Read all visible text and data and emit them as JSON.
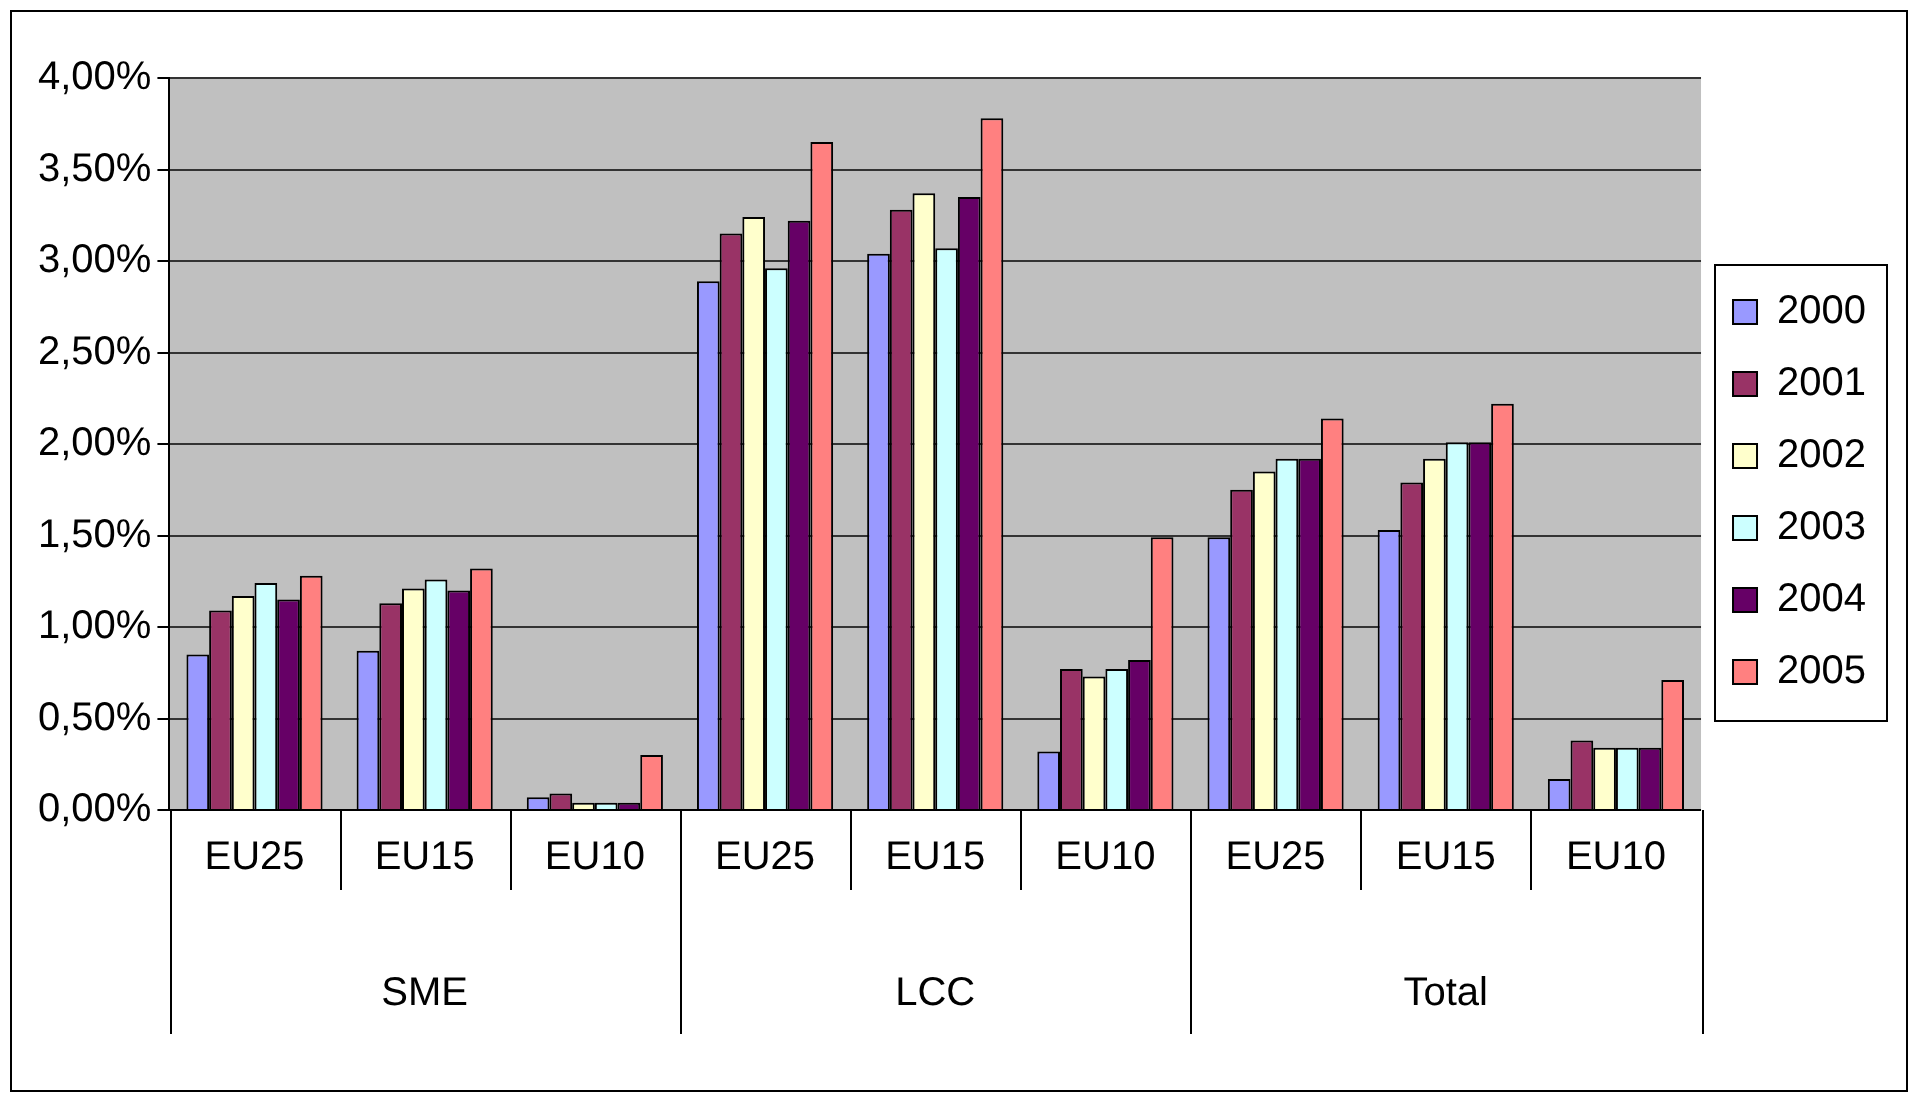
{
  "chart_data": {
    "type": "bar",
    "categories": [
      "EU25",
      "EU15",
      "EU10",
      "EU25",
      "EU15",
      "EU10",
      "EU25",
      "EU15",
      "EU10"
    ],
    "annotations": [
      "SME",
      "LCC",
      "Total"
    ],
    "series": [
      {
        "name": "2000",
        "color": "#9999ff",
        "values": [
          0.85,
          0.87,
          0.07,
          2.89,
          3.04,
          0.32,
          1.49,
          1.53,
          0.17
        ]
      },
      {
        "name": "2001",
        "color": "#993366",
        "values": [
          1.09,
          1.13,
          0.09,
          3.15,
          3.28,
          0.77,
          1.75,
          1.79,
          0.38
        ]
      },
      {
        "name": "2002",
        "color": "#ffffcc",
        "values": [
          1.17,
          1.21,
          0.04,
          3.24,
          3.37,
          0.73,
          1.85,
          1.92,
          0.34
        ]
      },
      {
        "name": "2003",
        "color": "#ccffff",
        "values": [
          1.24,
          1.26,
          0.04,
          2.96,
          3.07,
          0.77,
          1.92,
          2.01,
          0.34
        ]
      },
      {
        "name": "2004",
        "color": "#660066",
        "values": [
          1.15,
          1.2,
          0.04,
          3.22,
          3.35,
          0.82,
          1.92,
          2.01,
          0.34
        ]
      },
      {
        "name": "2005",
        "color": "#ff8080",
        "values": [
          1.28,
          1.32,
          0.3,
          3.65,
          3.78,
          1.49,
          2.14,
          2.22,
          0.71
        ]
      }
    ],
    "ylim": [
      0,
      4
    ],
    "yticks": [
      {
        "value": 0,
        "label": "0,00%"
      },
      {
        "value": 0.5,
        "label": "0,50%"
      },
      {
        "value": 1,
        "label": "1,00%"
      },
      {
        "value": 1.5,
        "label": "1,50%"
      },
      {
        "value": 2,
        "label": "2,00%"
      },
      {
        "value": 2.5,
        "label": "2,50%"
      },
      {
        "value": 3,
        "label": "3,00%"
      },
      {
        "value": 3.5,
        "label": "3,50%"
      },
      {
        "value": 4,
        "label": "4,00%"
      }
    ],
    "grid": "y",
    "legend": "right"
  }
}
